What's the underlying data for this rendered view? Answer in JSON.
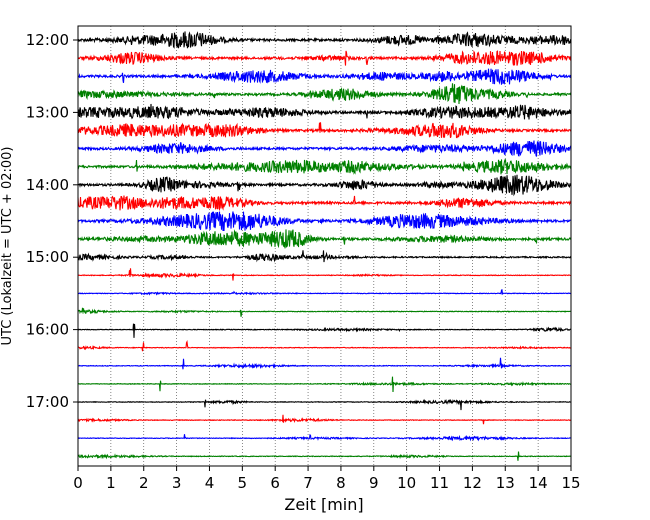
{
  "chart_data": {
    "type": "line",
    "title": "",
    "xlabel": "Zeit  [min]",
    "ylabel": "UTC (Lokalzeit = UTC + 02:00)",
    "xlim": [
      0,
      15
    ],
    "xticks": [
      "0",
      "1",
      "2",
      "3",
      "4",
      "5",
      "6",
      "7",
      "8",
      "9",
      "10",
      "11",
      "12",
      "13",
      "14",
      "15"
    ],
    "yticks": [
      "12:00",
      "13:00",
      "14:00",
      "15:00",
      "16:00",
      "17:00"
    ],
    "grid": "vertical dotted at each minute",
    "traces_per_hour": 4,
    "minutes_per_trace": 15,
    "trace_colors": [
      "#000000",
      "#ff0000",
      "#0000ff",
      "#008000"
    ],
    "traces": [
      {
        "start": "12:00",
        "color": "#000000",
        "activity": "high"
      },
      {
        "start": "12:15",
        "color": "#ff0000",
        "activity": "high"
      },
      {
        "start": "12:30",
        "color": "#0000ff",
        "activity": "high"
      },
      {
        "start": "12:45",
        "color": "#008000",
        "activity": "high"
      },
      {
        "start": "13:00",
        "color": "#000000",
        "activity": "high"
      },
      {
        "start": "13:15",
        "color": "#ff0000",
        "activity": "high"
      },
      {
        "start": "13:30",
        "color": "#0000ff",
        "activity": "high"
      },
      {
        "start": "13:45",
        "color": "#008000",
        "activity": "high"
      },
      {
        "start": "14:00",
        "color": "#000000",
        "activity": "high"
      },
      {
        "start": "14:15",
        "color": "#ff0000",
        "activity": "high"
      },
      {
        "start": "14:30",
        "color": "#0000ff",
        "activity": "high"
      },
      {
        "start": "14:45",
        "color": "#008000",
        "activity": "high"
      },
      {
        "start": "15:00",
        "color": "#000000",
        "activity": "medium"
      },
      {
        "start": "15:15",
        "color": "#ff0000",
        "activity": "low"
      },
      {
        "start": "15:30",
        "color": "#0000ff",
        "activity": "low"
      },
      {
        "start": "15:45",
        "color": "#008000",
        "activity": "low"
      },
      {
        "start": "16:00",
        "color": "#000000",
        "activity": "low"
      },
      {
        "start": "16:15",
        "color": "#ff0000",
        "activity": "low"
      },
      {
        "start": "16:30",
        "color": "#0000ff",
        "activity": "low"
      },
      {
        "start": "16:45",
        "color": "#008000",
        "activity": "low"
      },
      {
        "start": "17:00",
        "color": "#000000",
        "activity": "low"
      },
      {
        "start": "17:15",
        "color": "#ff0000",
        "activity": "low"
      },
      {
        "start": "17:30",
        "color": "#0000ff",
        "activity": "low"
      },
      {
        "start": "17:45",
        "color": "#008000",
        "activity": "low"
      }
    ]
  }
}
